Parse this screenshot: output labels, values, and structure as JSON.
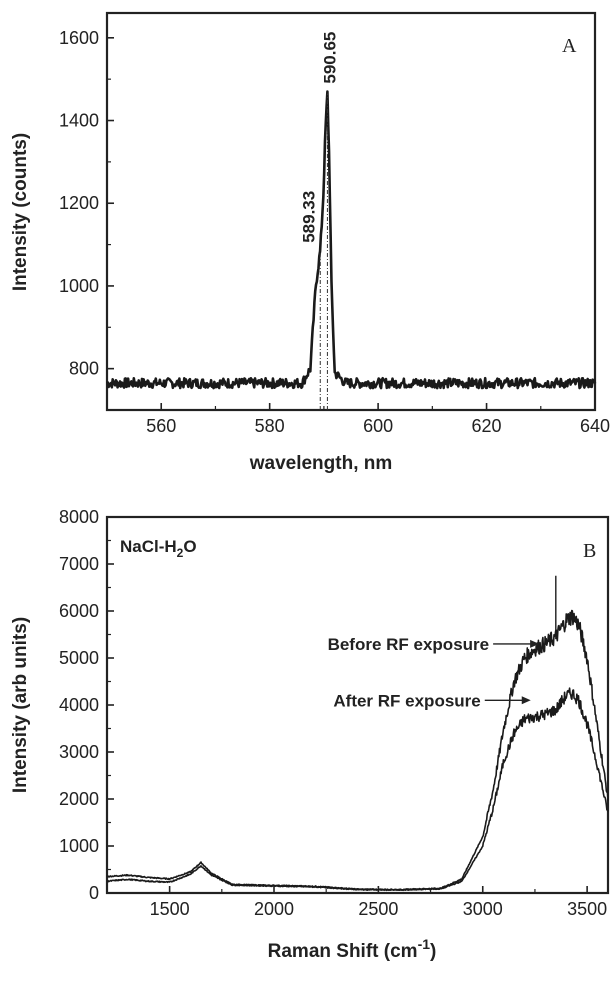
{
  "chart_data": [
    {
      "type": "line",
      "panel_label": "A",
      "xlabel": "wavelength, nm",
      "ylabel": "Intensity (counts)",
      "xlim": [
        550,
        640
      ],
      "ylim": [
        700,
        1660
      ],
      "xticks": [
        560,
        580,
        600,
        620,
        640
      ],
      "yticks": [
        800,
        1000,
        1200,
        1400,
        1600
      ],
      "grid": false,
      "annotations": [
        {
          "text": "590.65",
          "x": 590.65,
          "y": 1465
        },
        {
          "text": "589.33",
          "x": 589.33,
          "y": 1085
        }
      ],
      "series": [
        {
          "x": [
            550,
            586,
            587.5,
            588.5,
            589.33,
            589.9,
            590.3,
            590.65,
            591.0,
            591.4,
            592.0,
            594,
            640
          ],
          "y": [
            765,
            765,
            800,
            1000,
            1085,
            1220,
            1380,
            1465,
            1300,
            1000,
            790,
            765,
            765
          ]
        }
      ]
    },
    {
      "type": "line",
      "panel_label": "B",
      "xlabel": "Raman Shift (cm",
      "xlabel_sup": "-1",
      "xlabel_end": ")",
      "ylabel": "Intensity (arb units)",
      "xlim": [
        1200,
        3600
      ],
      "ylim": [
        0,
        8000
      ],
      "xticks": [
        1500,
        2000,
        2500,
        3000,
        3500
      ],
      "yticks": [
        0,
        1000,
        2000,
        3000,
        4000,
        5000,
        6000,
        7000,
        8000
      ],
      "grid": false,
      "legend": "none",
      "inset_text": {
        "main": "NaCl-H",
        "sub": "2",
        "end": "O"
      },
      "annotations": [
        {
          "text": "Before RF exposure",
          "x": 3270,
          "y": 5300
        },
        {
          "text": "After RF exposure",
          "x": 3230,
          "y": 4100
        }
      ],
      "series": [
        {
          "name": "Before RF exposure",
          "x": [
            1200,
            1300,
            1400,
            1500,
            1600,
            1650,
            1700,
            1800,
            2000,
            2200,
            2400,
            2600,
            2800,
            2900,
            3000,
            3050,
            3100,
            3150,
            3200,
            3250,
            3300,
            3350,
            3400,
            3430,
            3460,
            3500,
            3550,
            3600
          ],
          "y": [
            350,
            380,
            330,
            300,
            450,
            650,
            420,
            180,
            160,
            140,
            80,
            70,
            100,
            300,
            1200,
            2200,
            3500,
            4500,
            5000,
            5200,
            5300,
            5450,
            5800,
            5900,
            5700,
            5000,
            3500,
            2000
          ]
        },
        {
          "name": "After RF exposure",
          "x": [
            1200,
            1300,
            1400,
            1500,
            1600,
            1650,
            1700,
            1800,
            2000,
            2200,
            2400,
            2600,
            2800,
            2900,
            3000,
            3050,
            3100,
            3150,
            3200,
            3250,
            3300,
            3350,
            3400,
            3430,
            3460,
            3500,
            3550,
            3600
          ],
          "y": [
            250,
            290,
            250,
            230,
            400,
            580,
            380,
            170,
            150,
            130,
            75,
            65,
            90,
            250,
            1000,
            1800,
            2800,
            3400,
            3700,
            3750,
            3800,
            3900,
            4200,
            4250,
            4100,
            3600,
            2700,
            1700
          ]
        }
      ]
    }
  ]
}
